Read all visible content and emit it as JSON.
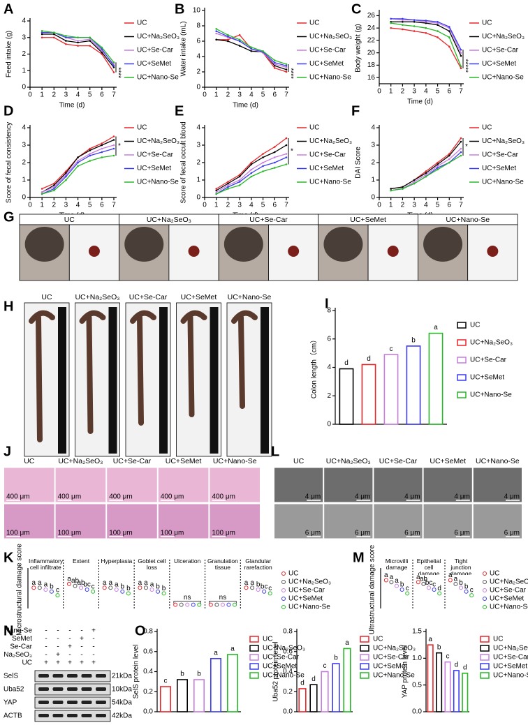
{
  "chart_data": [
    {
      "panel": "A",
      "type": "line",
      "ylabel": "Feed intake (g)",
      "xlabel": "Time (d)",
      "x": [
        1,
        2,
        3,
        4,
        5,
        6,
        7
      ],
      "xlim": [
        0,
        7
      ],
      "xticks": [
        0,
        1,
        2,
        3,
        4,
        5,
        6,
        7
      ],
      "ylim": [
        0,
        4
      ],
      "yticks": [
        0,
        1,
        2,
        3,
        4
      ],
      "annotation": "****",
      "series": [
        {
          "name": "UC",
          "color": "#e8262a",
          "values": [
            3.0,
            3.0,
            2.6,
            2.5,
            2.5,
            2.0,
            0.9
          ]
        },
        {
          "name": "UC+Na₂SeO₃",
          "color": "#000000",
          "values": [
            3.2,
            3.2,
            2.8,
            2.7,
            2.8,
            2.1,
            1.2
          ]
        },
        {
          "name": "UC+Se-Car",
          "color": "#c77dde",
          "values": [
            3.3,
            3.3,
            3.0,
            2.8,
            2.9,
            2.2,
            1.4
          ]
        },
        {
          "name": "UC+SeMet",
          "color": "#3b3bf0",
          "values": [
            3.3,
            3.3,
            3.0,
            3.0,
            3.0,
            2.3,
            1.3
          ]
        },
        {
          "name": "UC+Nano-Se",
          "color": "#27b827",
          "values": [
            3.4,
            3.3,
            3.1,
            3.0,
            3.0,
            2.4,
            1.5
          ]
        }
      ]
    },
    {
      "panel": "B",
      "type": "line",
      "ylabel": "Water intake (mL)",
      "xlabel": "Time (d)",
      "x": [
        1,
        2,
        3,
        4,
        5,
        6,
        7
      ],
      "xlim": [
        0,
        7
      ],
      "xticks": [
        0,
        1,
        2,
        3,
        4,
        5,
        6,
        7
      ],
      "ylim": [
        0,
        10
      ],
      "yticks": [
        0,
        2,
        4,
        6,
        8,
        10
      ],
      "annotation": "****",
      "series": [
        {
          "name": "UC",
          "color": "#e8262a",
          "values": [
            6.2,
            6.2,
            6.8,
            5.0,
            4.5,
            2.5,
            2.0
          ]
        },
        {
          "name": "UC+Na₂SeO₃",
          "color": "#000000",
          "values": [
            6.2,
            6.0,
            5.4,
            4.7,
            4.6,
            2.8,
            2.3
          ]
        },
        {
          "name": "UC+Se-Car",
          "color": "#c77dde",
          "values": [
            7.0,
            6.5,
            6.0,
            5.0,
            4.5,
            3.0,
            2.6
          ]
        },
        {
          "name": "UC+SeMet",
          "color": "#3b3bf0",
          "values": [
            7.3,
            6.6,
            6.0,
            5.0,
            4.6,
            3.2,
            2.8
          ]
        },
        {
          "name": "UC+Nano-Se",
          "color": "#27b827",
          "values": [
            7.6,
            6.8,
            6.2,
            5.2,
            4.7,
            3.5,
            3.0
          ]
        }
      ]
    },
    {
      "panel": "C",
      "type": "line",
      "ylabel": "Body weight (g)",
      "xlabel": "Time (d)",
      "x": [
        1,
        2,
        3,
        4,
        5,
        6,
        7
      ],
      "xlim": [
        0,
        7
      ],
      "xticks": [
        0,
        1,
        2,
        3,
        4,
        5,
        6,
        7
      ],
      "ylim": [
        15,
        26.5
      ],
      "yticks": [
        16,
        18,
        20,
        22,
        24,
        26
      ],
      "annotation": "*****",
      "series": [
        {
          "name": "UC",
          "color": "#e8262a",
          "values": [
            24.0,
            23.8,
            23.5,
            23.2,
            22.5,
            21.0,
            17.5
          ]
        },
        {
          "name": "UC+Na₂SeO₃",
          "color": "#000000",
          "values": [
            25.0,
            25.0,
            25.0,
            24.8,
            24.5,
            23.5,
            19.5
          ]
        },
        {
          "name": "UC+Se-Car",
          "color": "#c77dde",
          "values": [
            25.5,
            25.3,
            25.3,
            25.0,
            24.8,
            24.0,
            20.0
          ]
        },
        {
          "name": "UC+SeMet",
          "color": "#3b3bf0",
          "values": [
            25.5,
            25.5,
            25.3,
            25.2,
            25.0,
            24.2,
            20.5
          ]
        },
        {
          "name": "UC+Nano-Se",
          "color": "#27b827",
          "values": [
            24.8,
            24.5,
            24.3,
            24.0,
            23.5,
            22.5,
            17.8
          ]
        }
      ]
    },
    {
      "panel": "D",
      "type": "line",
      "ylabel": "Score of fecal consistency",
      "xlabel": "Time (d)",
      "x": [
        1,
        2,
        3,
        4,
        5,
        6,
        7
      ],
      "xlim": [
        0,
        7
      ],
      "xticks": [
        0,
        1,
        2,
        3,
        4,
        5,
        6,
        7
      ],
      "ylim": [
        0,
        4
      ],
      "yticks": [
        0,
        1,
        2,
        3,
        4
      ],
      "annotation": "*",
      "series": [
        {
          "name": "UC",
          "color": "#e8262a",
          "values": [
            0.5,
            0.8,
            1.5,
            2.3,
            2.8,
            3.1,
            3.5
          ]
        },
        {
          "name": "UC+Na₂SeO₃",
          "color": "#000000",
          "values": [
            0.3,
            0.7,
            1.4,
            2.3,
            2.7,
            3.0,
            3.3
          ]
        },
        {
          "name": "UC+Se-Car",
          "color": "#c77dde",
          "values": [
            0.3,
            0.6,
            1.3,
            2.1,
            2.5,
            2.8,
            3.0
          ]
        },
        {
          "name": "UC+SeMet",
          "color": "#3b3bf0",
          "values": [
            0.2,
            0.5,
            1.2,
            2.0,
            2.4,
            2.6,
            2.8
          ]
        },
        {
          "name": "UC+Nano-Se",
          "color": "#27b827",
          "values": [
            0.2,
            0.4,
            1.0,
            1.8,
            2.1,
            2.3,
            2.4
          ]
        }
      ]
    },
    {
      "panel": "E",
      "type": "line",
      "ylabel": "Score of fecal occult blood",
      "xlabel": "Time (d)",
      "x": [
        1,
        2,
        3,
        4,
        5,
        6,
        7
      ],
      "xlim": [
        0,
        7
      ],
      "xticks": [
        0,
        1,
        2,
        3,
        4,
        5,
        6,
        7
      ],
      "ylim": [
        0,
        4
      ],
      "yticks": [
        0,
        1,
        2,
        3,
        4
      ],
      "annotation": "*",
      "series": [
        {
          "name": "UC",
          "color": "#e8262a",
          "values": [
            0.5,
            0.9,
            1.3,
            2.0,
            2.5,
            2.9,
            3.4
          ]
        },
        {
          "name": "UC+Na₂SeO₃",
          "color": "#000000",
          "values": [
            0.4,
            0.8,
            1.2,
            1.9,
            2.3,
            2.6,
            3.0
          ]
        },
        {
          "name": "UC+Se-Car",
          "color": "#c77dde",
          "values": [
            0.3,
            0.7,
            1.0,
            1.6,
            2.0,
            2.3,
            2.5
          ]
        },
        {
          "name": "UC+SeMet",
          "color": "#3b3bf0",
          "values": [
            0.2,
            0.6,
            0.9,
            1.4,
            1.8,
            2.0,
            2.3
          ]
        },
        {
          "name": "UC+Nano-Se",
          "color": "#27b827",
          "values": [
            0.2,
            0.5,
            0.7,
            1.2,
            1.5,
            1.7,
            1.9
          ]
        }
      ]
    },
    {
      "panel": "F",
      "type": "line",
      "ylabel": "DAI Score",
      "xlabel": "Time (d)",
      "x": [
        1,
        2,
        3,
        4,
        5,
        6,
        7
      ],
      "xlim": [
        0,
        7
      ],
      "xticks": [
        0,
        1,
        2,
        3,
        4,
        5,
        6,
        7
      ],
      "ylim": [
        0,
        4
      ],
      "yticks": [
        0,
        1,
        2,
        3,
        4
      ],
      "annotation": "*",
      "series": [
        {
          "name": "UC",
          "color": "#e8262a",
          "values": [
            0.5,
            0.6,
            1.0,
            1.5,
            2.0,
            2.5,
            3.4
          ]
        },
        {
          "name": "UC+Na₂SeO₃",
          "color": "#000000",
          "values": [
            0.5,
            0.6,
            1.0,
            1.4,
            1.9,
            2.4,
            3.2
          ]
        },
        {
          "name": "UC+Se-Car",
          "color": "#c77dde",
          "values": [
            0.4,
            0.5,
            0.9,
            1.3,
            1.8,
            2.2,
            2.8
          ]
        },
        {
          "name": "UC+SeMet",
          "color": "#3b3bf0",
          "values": [
            0.4,
            0.5,
            0.8,
            1.2,
            1.7,
            2.0,
            2.6
          ]
        },
        {
          "name": "UC+Nano-Se",
          "color": "#27b827",
          "values": [
            0.4,
            0.5,
            0.8,
            1.2,
            1.6,
            2.0,
            2.4
          ]
        }
      ]
    },
    {
      "panel": "I",
      "type": "bar",
      "ylabel": "Colon length（cm）",
      "categories": [
        "UC",
        "UC+Na₂SeO₃",
        "UC+Se-Car",
        "UC+SeMet",
        "UC+Nano-Se"
      ],
      "colors": [
        "#000000",
        "#e8262a",
        "#c77dde",
        "#3b3bf0",
        "#27b827"
      ],
      "values": [
        3.9,
        4.2,
        4.9,
        5.5,
        6.4
      ],
      "letters": [
        "d",
        "d",
        "c",
        "b",
        "a"
      ],
      "ylim": [
        0,
        8
      ],
      "yticks": [
        0,
        2,
        4,
        6,
        8
      ]
    },
    {
      "panel": "O",
      "type": "bar",
      "ylabel": "SelS protein level",
      "categories": [
        "UC",
        "UC+Na₂SeO₃",
        "UC+Se-Car",
        "UC+SeMet",
        "UC+Nano-Se"
      ],
      "colors": [
        "#e8262a",
        "#000000",
        "#c77dde",
        "#3b3bf0",
        "#27b827"
      ],
      "values": [
        0.25,
        0.32,
        0.32,
        0.53,
        0.57
      ],
      "letters": [
        "c",
        "b",
        "b",
        "a",
        "a"
      ],
      "ylim": [
        0,
        0.8
      ],
      "yticks": [
        {
          "value": 0,
          "label": "0.0"
        },
        0.2,
        0.4,
        0.6,
        0.8
      ]
    },
    {
      "type": "bar",
      "ylabel": "Uba52 protein level",
      "categories": [
        "UC",
        "UC+Na₂SeO₃",
        "UC+Se-Car",
        "UC+SeMet",
        "UC+Nano-Se"
      ],
      "colors": [
        "#e8262a",
        "#000000",
        "#c77dde",
        "#3b3bf0",
        "#27b827"
      ],
      "values": [
        0.23,
        0.27,
        0.4,
        0.48,
        0.63
      ],
      "letters": [
        "d",
        "d",
        "c",
        "b",
        "a"
      ],
      "ylim": [
        0,
        0.8
      ],
      "yticks": [
        {
          "value": 0,
          "label": "0.0"
        },
        0.2,
        0.4,
        0.6,
        0.8
      ]
    },
    {
      "type": "bar",
      "ylabel": "YAP protein level",
      "categories": [
        "UC",
        "UC+Na₂SeO₃",
        "UC+Se-Car",
        "UC+SeMet",
        "UC+Nano-Se"
      ],
      "colors": [
        "#e8262a",
        "#000000",
        "#c77dde",
        "#3b3bf0",
        "#27b827"
      ],
      "values": [
        1.25,
        1.1,
        0.93,
        0.77,
        0.72
      ],
      "letters": [
        "a",
        "b",
        "c",
        "d",
        "d"
      ],
      "ylim": [
        0,
        1.5
      ],
      "yticks": [
        {
          "value": 0,
          "label": "0.0"
        },
        0.5,
        {
          "value": 1,
          "label": "1.0"
        },
        1.5
      ]
    },
    {
      "panel": "K",
      "type": "dot",
      "ylabel": "Microstructural damage score",
      "ylim": [
        0,
        1
      ],
      "groups": [
        "Inflammatory cell infiltrate",
        "Extent",
        "Hyperplasia",
        "Goblet cell loss",
        "Ulceration",
        "Granulation tissue",
        "Glandular rarefaction"
      ],
      "group_annotations": [
        null,
        null,
        null,
        null,
        "ns",
        "ns",
        null
      ],
      "letters": [
        [
          "a",
          "a",
          "a",
          "b",
          "c"
        ],
        [
          "a",
          "ab",
          "ab",
          "bc",
          "c"
        ],
        [
          "a",
          "a",
          "a",
          "b",
          "b"
        ],
        [
          "a",
          "a",
          "a",
          "b",
          "b"
        ],
        [
          null,
          null,
          null,
          null,
          null
        ],
        [
          null,
          null,
          null,
          null,
          null
        ],
        [
          "a",
          "a",
          "b",
          "bc",
          "c"
        ]
      ],
      "series": [
        {
          "name": "UC",
          "color": "#e8262a",
          "values": [
            0.55,
            0.65,
            0.55,
            0.55,
            0.1,
            0.1,
            0.55
          ]
        },
        {
          "name": "UC+Na₂SeO₃",
          "color": "#555555",
          "values": [
            0.55,
            0.6,
            0.55,
            0.55,
            0.1,
            0.1,
            0.55
          ]
        },
        {
          "name": "UC+Se-Car",
          "color": "#c77dde",
          "values": [
            0.5,
            0.55,
            0.5,
            0.5,
            0.1,
            0.1,
            0.5
          ]
        },
        {
          "name": "UC+SeMet",
          "color": "#3b3bf0",
          "values": [
            0.45,
            0.5,
            0.45,
            0.45,
            0.1,
            0.1,
            0.45
          ]
        },
        {
          "name": "UC+Nano-Se",
          "color": "#27b827",
          "values": [
            0.35,
            0.45,
            0.4,
            0.4,
            0.1,
            0.1,
            0.4
          ]
        }
      ]
    },
    {
      "panel": "M",
      "type": "dot",
      "ylabel": "Ultrastructural damage score",
      "ylim": [
        0,
        1
      ],
      "groups": [
        "Microvilli damage",
        "Epithelial cell damage",
        "Tight junction damage"
      ],
      "group_annotations": [
        null,
        null,
        null
      ],
      "letters": [
        [
          "a",
          "a",
          "a",
          "b",
          "c"
        ],
        [
          "a",
          "ab",
          "bc",
          "c",
          "d"
        ],
        [
          "a",
          "a",
          "b",
          "b",
          "c"
        ]
      ],
      "series": [
        {
          "name": "UC",
          "color": "#e8262a",
          "values": [
            0.75,
            0.7,
            0.75
          ]
        },
        {
          "name": "UC+Na₂SeO₃",
          "color": "#555555",
          "values": [
            0.7,
            0.65,
            0.65
          ]
        },
        {
          "name": "UC+Se-Car",
          "color": "#c77dde",
          "values": [
            0.6,
            0.55,
            0.55
          ]
        },
        {
          "name": "UC+SeMet",
          "color": "#3b3bf0",
          "values": [
            0.5,
            0.5,
            0.45
          ]
        },
        {
          "name": "UC+Nano-Se",
          "color": "#27b827",
          "values": [
            0.4,
            0.4,
            0.35
          ]
        }
      ]
    }
  ],
  "panels": {
    "G": {
      "panel": "G",
      "labels": [
        "UC",
        "UC+Na₂SeO₃",
        "UC+Se-Car",
        "UC+SeMet",
        "UC+Nano-Se"
      ]
    },
    "H": {
      "panel": "H",
      "labels": [
        "UC",
        "UC+Na₂SeO₃",
        "UC+Se-Car",
        "UC+SeMet",
        "UC+Nano-Se"
      ]
    },
    "J": {
      "panel": "J",
      "labels": [
        "UC",
        "UC+Na₂SeO₃",
        "UC+Se-Car",
        "UC+SeMet",
        "UC+Nano-Se"
      ],
      "scales": [
        "400 μm",
        "100 μm"
      ]
    },
    "L": {
      "panel": "L",
      "labels": [
        "UC",
        "UC+Na₂SeO₃",
        "UC+Se-Car",
        "UC+SeMet",
        "UC+Nano-Se"
      ],
      "scales": [
        "4 μm",
        "6 μm"
      ]
    },
    "N": {
      "panel": "N",
      "treatments": [
        {
          "name": "Nano-Se",
          "signs": [
            "-",
            "-",
            "-",
            "-",
            "+"
          ]
        },
        {
          "name": "SeMet",
          "signs": [
            "-",
            "-",
            "-",
            "+",
            "-"
          ]
        },
        {
          "name": "Se-Car",
          "signs": [
            "-",
            "-",
            "+",
            "-",
            "-"
          ]
        },
        {
          "name": "Na₂SeO₃",
          "signs": [
            "-",
            "+",
            "-",
            "-",
            "-"
          ]
        },
        {
          "name": "UC",
          "signs": [
            "+",
            "+",
            "+",
            "+",
            "+"
          ]
        }
      ],
      "bands": [
        {
          "name": "SelS",
          "size": "21kDa"
        },
        {
          "name": "Uba52",
          "size": "10kDa"
        },
        {
          "name": "YAP",
          "size": "54kDa"
        },
        {
          "name": "ACTB",
          "size": "42kDa"
        }
      ]
    }
  }
}
